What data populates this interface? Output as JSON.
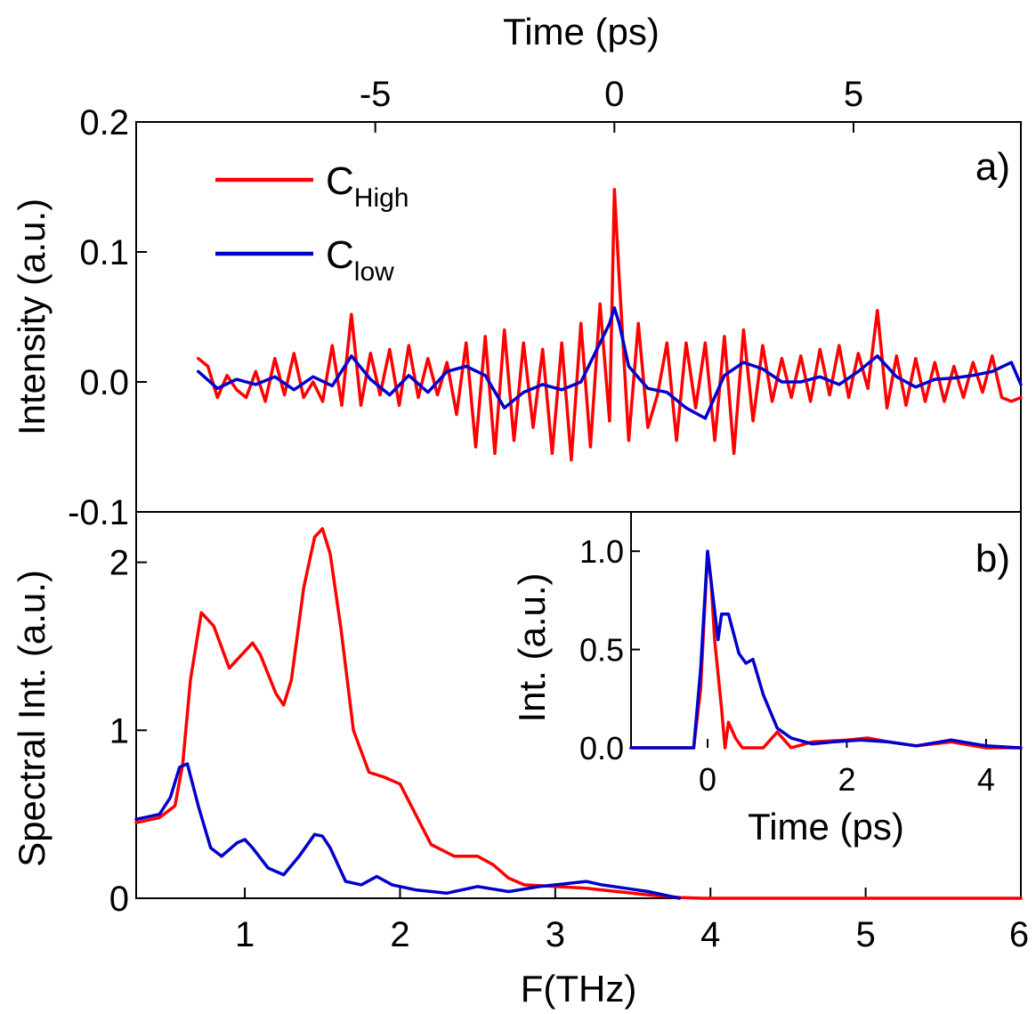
{
  "colors": {
    "c_high": "#ff0000",
    "c_low": "#0000cc"
  },
  "chart_data": [
    {
      "id": "a",
      "type": "line",
      "panel_label": "a)",
      "xlabel": "Time (ps)",
      "ylabel": "Intensity (a.u.)",
      "xlim": [
        -10,
        8.5
      ],
      "ylim": [
        -0.1,
        0.2
      ],
      "xticks": [
        -5,
        0,
        5
      ],
      "xtick_labels": [
        "-5",
        "0",
        "5"
      ],
      "yticks": [
        -0.1,
        0.0,
        0.1,
        0.2
      ],
      "ytick_labels": [
        "-0.1",
        "0.0",
        "0.1",
        "0.2"
      ],
      "legend": {
        "placement": "top-left",
        "entries": [
          {
            "main": "C",
            "sub": "High"
          },
          {
            "main": "C",
            "sub": "low"
          }
        ]
      },
      "series": [
        {
          "name": "C High",
          "color": "#ff0000",
          "x": [
            -8.7,
            -8.5,
            -8.3,
            -8.1,
            -7.9,
            -7.7,
            -7.5,
            -7.3,
            -7.1,
            -6.9,
            -6.7,
            -6.5,
            -6.3,
            -6.1,
            -5.9,
            -5.7,
            -5.5,
            -5.3,
            -5.1,
            -4.9,
            -4.7,
            -4.5,
            -4.3,
            -4.1,
            -3.9,
            -3.7,
            -3.5,
            -3.3,
            -3.1,
            -2.9,
            -2.7,
            -2.5,
            -2.3,
            -2.1,
            -1.9,
            -1.7,
            -1.5,
            -1.3,
            -1.1,
            -0.9,
            -0.7,
            -0.5,
            -0.3,
            -0.1,
            0.0,
            0.1,
            0.3,
            0.5,
            0.7,
            0.9,
            1.1,
            1.3,
            1.5,
            1.7,
            1.9,
            2.1,
            2.3,
            2.5,
            2.7,
            2.9,
            3.1,
            3.3,
            3.5,
            3.7,
            3.9,
            4.1,
            4.3,
            4.5,
            4.7,
            4.9,
            5.1,
            5.3,
            5.5,
            5.7,
            5.9,
            6.1,
            6.3,
            6.5,
            6.7,
            6.9,
            7.1,
            7.3,
            7.5,
            7.7,
            7.9,
            8.1,
            8.3,
            8.5
          ],
          "y": [
            0.018,
            0.012,
            -0.012,
            0.005,
            -0.006,
            -0.012,
            0.008,
            -0.015,
            0.018,
            -0.01,
            0.022,
            -0.012,
            0.0,
            -0.015,
            0.028,
            -0.018,
            0.052,
            -0.018,
            0.022,
            -0.01,
            0.025,
            -0.018,
            0.028,
            -0.012,
            0.018,
            -0.01,
            0.015,
            -0.025,
            0.03,
            -0.05,
            0.035,
            -0.055,
            0.04,
            -0.045,
            0.03,
            -0.035,
            0.025,
            -0.055,
            0.03,
            -0.06,
            0.045,
            -0.05,
            0.06,
            -0.03,
            0.148,
            0.08,
            -0.045,
            0.045,
            -0.035,
            -0.01,
            0.03,
            -0.045,
            0.03,
            -0.02,
            0.03,
            -0.045,
            0.035,
            -0.055,
            0.04,
            -0.03,
            0.028,
            -0.015,
            0.018,
            -0.012,
            0.02,
            -0.015,
            0.025,
            -0.01,
            0.028,
            -0.012,
            0.022,
            -0.005,
            0.055,
            -0.02,
            0.02,
            -0.018,
            0.018,
            -0.015,
            0.015,
            -0.015,
            0.012,
            -0.012,
            0.015,
            -0.008,
            0.02,
            -0.012,
            -0.015,
            -0.012
          ]
        },
        {
          "name": "C low",
          "color": "#0000cc",
          "x": [
            -8.7,
            -8.3,
            -7.9,
            -7.5,
            -7.1,
            -6.7,
            -6.3,
            -5.9,
            -5.5,
            -5.1,
            -4.7,
            -4.3,
            -3.9,
            -3.5,
            -3.1,
            -2.7,
            -2.3,
            -1.9,
            -1.5,
            -1.1,
            -0.7,
            -0.3,
            -0.1,
            0.0,
            0.1,
            0.3,
            0.7,
            1.1,
            1.5,
            1.9,
            2.3,
            2.7,
            3.1,
            3.5,
            3.9,
            4.3,
            4.7,
            5.1,
            5.5,
            5.9,
            6.3,
            6.7,
            7.1,
            7.5,
            7.9,
            8.3,
            8.5
          ],
          "y": [
            0.008,
            -0.005,
            0.002,
            -0.002,
            0.004,
            -0.006,
            0.004,
            -0.003,
            0.02,
            0.002,
            -0.01,
            0.005,
            -0.008,
            0.008,
            0.012,
            0.005,
            -0.02,
            -0.008,
            -0.002,
            -0.006,
            0.0,
            0.03,
            0.045,
            0.057,
            0.045,
            0.012,
            -0.005,
            -0.008,
            -0.02,
            -0.028,
            0.005,
            0.015,
            0.01,
            0.0,
            0.0,
            0.004,
            -0.002,
            0.008,
            0.02,
            0.004,
            -0.004,
            0.002,
            0.003,
            0.005,
            0.008,
            0.015,
            -0.002
          ]
        }
      ]
    },
    {
      "id": "b",
      "type": "line",
      "panel_label": "b)",
      "xlabel": "F(THz)",
      "ylabel": "Spectral Int. (a.u.)",
      "xlim": [
        0.3,
        6.0
      ],
      "ylim": [
        0,
        2.3
      ],
      "xticks": [
        1,
        2,
        3,
        4,
        5,
        6
      ],
      "xtick_labels": [
        "1",
        "2",
        "3",
        "4",
        "5",
        "6"
      ],
      "yticks": [
        0,
        1,
        2
      ],
      "ytick_labels": [
        "0",
        "1",
        "2"
      ],
      "series": [
        {
          "name": "C High",
          "color": "#ff0000",
          "x": [
            0.3,
            0.45,
            0.55,
            0.6,
            0.65,
            0.72,
            0.8,
            0.9,
            1.0,
            1.05,
            1.1,
            1.2,
            1.25,
            1.3,
            1.38,
            1.45,
            1.5,
            1.55,
            1.62,
            1.7,
            1.8,
            1.9,
            2.0,
            2.1,
            2.2,
            2.35,
            2.5,
            2.6,
            2.7,
            2.8,
            3.0,
            3.2,
            3.4,
            3.6,
            3.8,
            3.95,
            4.1,
            4.5,
            5.0,
            5.5,
            6.0
          ],
          "y": [
            0.45,
            0.48,
            0.55,
            0.8,
            1.3,
            1.7,
            1.62,
            1.37,
            1.47,
            1.52,
            1.45,
            1.22,
            1.15,
            1.3,
            1.85,
            2.15,
            2.2,
            2.05,
            1.6,
            1.0,
            0.75,
            0.72,
            0.68,
            0.5,
            0.32,
            0.25,
            0.25,
            0.2,
            0.12,
            0.08,
            0.07,
            0.06,
            0.04,
            0.02,
            0.005,
            0.0,
            0.0,
            0.0,
            0.0,
            0.0,
            0.0
          ]
        },
        {
          "name": "C low",
          "color": "#0000cc",
          "x": [
            0.3,
            0.45,
            0.52,
            0.58,
            0.63,
            0.7,
            0.78,
            0.85,
            0.95,
            1.0,
            1.05,
            1.15,
            1.25,
            1.35,
            1.45,
            1.5,
            1.55,
            1.65,
            1.75,
            1.85,
            1.95,
            2.1,
            2.3,
            2.5,
            2.7,
            2.9,
            3.1,
            3.2,
            3.3,
            3.45,
            3.6,
            3.8
          ],
          "y": [
            0.47,
            0.5,
            0.6,
            0.78,
            0.8,
            0.55,
            0.3,
            0.25,
            0.33,
            0.35,
            0.3,
            0.18,
            0.14,
            0.25,
            0.38,
            0.37,
            0.3,
            0.1,
            0.08,
            0.13,
            0.08,
            0.05,
            0.03,
            0.07,
            0.04,
            0.07,
            0.09,
            0.1,
            0.08,
            0.06,
            0.04,
            0.0
          ]
        }
      ]
    },
    {
      "id": "inset",
      "type": "line",
      "xlabel": "Time (ps)",
      "ylabel": "Int. (a.u.)",
      "xlim": [
        -1.1,
        4.5
      ],
      "ylim": [
        0,
        1.2
      ],
      "xticks": [
        0,
        2,
        4
      ],
      "xtick_labels": [
        "0",
        "2",
        "4"
      ],
      "yticks": [
        0.0,
        0.5,
        1.0
      ],
      "ytick_labels": [
        "0.0",
        "0.5",
        "1.0"
      ],
      "series": [
        {
          "name": "C High",
          "color": "#ff0000",
          "x": [
            -1.1,
            -0.2,
            -0.1,
            0.0,
            0.05,
            0.1,
            0.2,
            0.25,
            0.3,
            0.4,
            0.5,
            0.6,
            0.8,
            1.0,
            1.2,
            1.5,
            2.0,
            2.3,
            2.6,
            3.0,
            3.5,
            4.0,
            4.5
          ],
          "y": [
            0.0,
            0.0,
            0.3,
            1.0,
            0.85,
            0.55,
            0.2,
            0.0,
            0.13,
            0.05,
            0.0,
            0.0,
            0.0,
            0.08,
            0.0,
            0.03,
            0.04,
            0.05,
            0.03,
            0.01,
            0.03,
            0.0,
            0.0
          ]
        },
        {
          "name": "C low",
          "color": "#0000cc",
          "x": [
            -1.1,
            -0.2,
            -0.1,
            0.0,
            0.05,
            0.15,
            0.2,
            0.3,
            0.45,
            0.55,
            0.65,
            0.8,
            1.0,
            1.2,
            1.5,
            1.8,
            2.2,
            2.6,
            3.0,
            3.5,
            4.0,
            4.5
          ],
          "y": [
            0.0,
            0.0,
            0.4,
            1.0,
            0.85,
            0.55,
            0.68,
            0.68,
            0.48,
            0.43,
            0.45,
            0.27,
            0.1,
            0.05,
            0.02,
            0.03,
            0.04,
            0.03,
            0.01,
            0.04,
            0.01,
            0.0
          ]
        }
      ]
    }
  ]
}
